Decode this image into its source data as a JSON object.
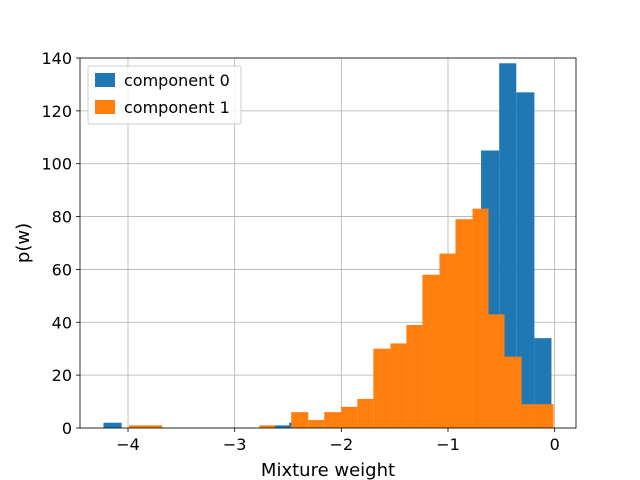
{
  "chart_data": {
    "type": "bar",
    "xlabel": "Mixture weight",
    "ylabel": "p(w)",
    "xlim": [
      -4.45,
      0.2
    ],
    "ylim": [
      0,
      140
    ],
    "xticks": [
      -4,
      -3,
      -2,
      -1,
      0
    ],
    "xtick_labels": [
      "−4",
      "−3",
      "−2",
      "−1",
      "0"
    ],
    "yticks": [
      0,
      20,
      40,
      60,
      80,
      100,
      120,
      140
    ],
    "ytick_labels": [
      "0",
      "20",
      "40",
      "60",
      "80",
      "100",
      "120",
      "140"
    ],
    "grid": true,
    "legend_position": "top-left",
    "colors": {
      "component_0": "#1f77b4",
      "component_1": "#ff7f0e"
    },
    "series": [
      {
        "name": "component 0",
        "bins": [
          {
            "x0": -4.23,
            "x1": -4.06,
            "count": 2
          },
          {
            "x0": -2.63,
            "x1": -2.49,
            "count": 1
          },
          {
            "x0": -2.49,
            "x1": -2.36,
            "count": 2
          },
          {
            "x0": -0.69,
            "x1": -0.52,
            "count": 105
          },
          {
            "x0": -0.52,
            "x1": -0.36,
            "count": 138
          },
          {
            "x0": -0.36,
            "x1": -0.19,
            "count": 127
          },
          {
            "x0": -0.19,
            "x1": -0.03,
            "count": 34
          }
        ]
      },
      {
        "name": "component 1",
        "bins": [
          {
            "x0": -3.99,
            "x1": -3.84,
            "count": 1
          },
          {
            "x0": -3.84,
            "x1": -3.68,
            "count": 1
          },
          {
            "x0": -2.77,
            "x1": -2.62,
            "count": 1
          },
          {
            "x0": -2.47,
            "x1": -2.31,
            "count": 6
          },
          {
            "x0": -2.31,
            "x1": -2.16,
            "count": 3
          },
          {
            "x0": -2.16,
            "x1": -2.0,
            "count": 6
          },
          {
            "x0": -2.0,
            "x1": -1.85,
            "count": 8
          },
          {
            "x0": -1.85,
            "x1": -1.7,
            "count": 11
          },
          {
            "x0": -1.7,
            "x1": -1.54,
            "count": 30
          },
          {
            "x0": -1.54,
            "x1": -1.39,
            "count": 32
          },
          {
            "x0": -1.39,
            "x1": -1.24,
            "count": 39
          },
          {
            "x0": -1.24,
            "x1": -1.08,
            "count": 58
          },
          {
            "x0": -1.08,
            "x1": -0.93,
            "count": 66
          },
          {
            "x0": -0.93,
            "x1": -0.77,
            "count": 79
          },
          {
            "x0": -0.77,
            "x1": -0.62,
            "count": 83
          },
          {
            "x0": -0.62,
            "x1": -0.47,
            "count": 43
          },
          {
            "x0": -0.47,
            "x1": -0.31,
            "count": 27
          },
          {
            "x0": -0.31,
            "x1": -0.16,
            "count": 9
          },
          {
            "x0": -0.16,
            "x1": -0.01,
            "count": 9
          }
        ]
      }
    ]
  }
}
